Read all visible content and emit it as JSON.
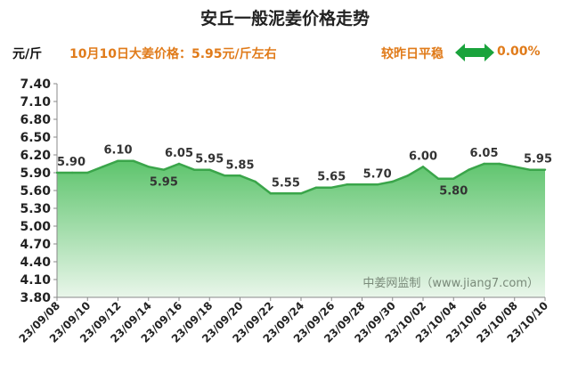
{
  "header": {
    "title": "安丘一般泥姜价格走势",
    "unit": "元/斤",
    "headline": "10月10日大姜价格：5.95元/斤左右",
    "trend_label": "较昨日平稳",
    "trend_icon": "double-arrow-icon",
    "trend_change": "0.00%"
  },
  "watermark": "中姜网监制（www.jiang7.com）",
  "colors": {
    "line": "#3aa54a",
    "fill_top": "#5dc46c",
    "fill_bottom": "#e9f6ea",
    "orange": "#e07b1a",
    "arrow": "#1aa33c"
  },
  "chart_data": {
    "type": "area",
    "title": "安丘一般泥姜价格走势",
    "ylabel": "元/斤",
    "ylim": [
      3.8,
      7.4
    ],
    "yticks": [
      "7.40",
      "7.10",
      "6.80",
      "6.50",
      "6.20",
      "5.90",
      "5.60",
      "5.30",
      "5.00",
      "4.70",
      "4.40",
      "4.10",
      "3.80"
    ],
    "grid": false,
    "x": [
      "23/09/08",
      "23/09/09",
      "23/09/10",
      "23/09/11",
      "23/09/12",
      "23/09/13",
      "23/09/14",
      "23/09/15",
      "23/09/16",
      "23/09/17",
      "23/09/18",
      "23/09/19",
      "23/09/20",
      "23/09/21",
      "23/09/22",
      "23/09/23",
      "23/09/24",
      "23/09/25",
      "23/09/26",
      "23/09/27",
      "23/09/28",
      "23/09/29",
      "23/09/30",
      "23/10/01",
      "23/10/02",
      "23/10/03",
      "23/10/04",
      "23/10/05",
      "23/10/06",
      "23/10/07",
      "23/10/08",
      "23/10/09",
      "23/10/10"
    ],
    "xticks": [
      "23/09/08",
      "23/09/10",
      "23/09/12",
      "23/09/14",
      "23/09/16",
      "23/09/18",
      "23/09/20",
      "23/09/22",
      "23/09/24",
      "23/09/26",
      "23/09/28",
      "23/09/30",
      "23/10/02",
      "23/10/04",
      "23/10/06",
      "23/10/08",
      "23/10/10"
    ],
    "series": [
      {
        "values": [
          5.9,
          5.9,
          5.9,
          6.0,
          6.1,
          6.1,
          6.0,
          5.95,
          6.05,
          5.95,
          5.95,
          5.85,
          5.85,
          5.75,
          5.55,
          5.55,
          5.55,
          5.65,
          5.65,
          5.7,
          5.7,
          5.7,
          5.75,
          5.85,
          6.0,
          5.8,
          5.8,
          5.95,
          6.05,
          6.05,
          6.0,
          5.95,
          5.95
        ]
      }
    ],
    "data_labels": [
      {
        "x": "23/09/08",
        "text": "5.90",
        "pos": "above"
      },
      {
        "x": "23/09/12",
        "text": "6.10",
        "pos": "above"
      },
      {
        "x": "23/09/15",
        "text": "5.95",
        "pos": "below"
      },
      {
        "x": "23/09/16",
        "text": "6.05",
        "pos": "above"
      },
      {
        "x": "23/09/18",
        "text": "5.95",
        "pos": "above"
      },
      {
        "x": "23/09/20",
        "text": "5.85",
        "pos": "above"
      },
      {
        "x": "23/09/23",
        "text": "5.55",
        "pos": "above"
      },
      {
        "x": "23/09/26",
        "text": "5.65",
        "pos": "above"
      },
      {
        "x": "23/09/29",
        "text": "5.70",
        "pos": "above"
      },
      {
        "x": "23/10/02",
        "text": "6.00",
        "pos": "above"
      },
      {
        "x": "23/10/04",
        "text": "5.80",
        "pos": "below"
      },
      {
        "x": "23/10/06",
        "text": "6.05",
        "pos": "above"
      },
      {
        "x": "23/10/10",
        "text": "5.95",
        "pos": "above"
      }
    ]
  }
}
